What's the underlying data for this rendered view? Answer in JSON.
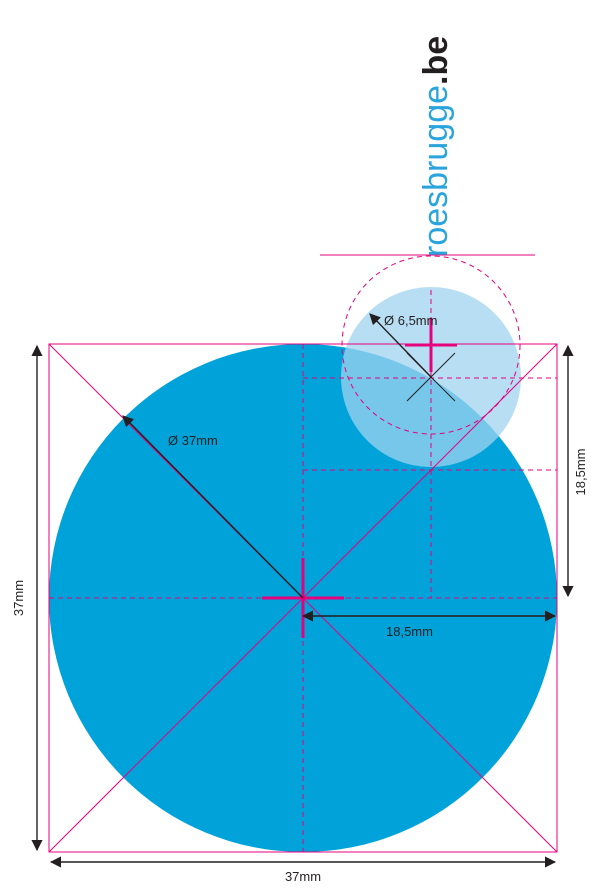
{
  "brand": {
    "name_part": "roesbrugge",
    "tld_part": ".be",
    "name_color": "#2aa4dc",
    "tld_color": "#231f20"
  },
  "dimensions": {
    "width_label": "37mm",
    "height_label": "37mm",
    "diameter_large_label": "Ø 37mm",
    "radius_horizontal_label": "18,5mm",
    "radius_vertical_label": "18,5mm",
    "diameter_small_label": "Ø 6,5mm"
  },
  "colors": {
    "large_circle_fill": "#00a3d9",
    "small_circle_fill": "#9fd3ef",
    "guide_lines": "#e6007e",
    "dimension_lines": "#231f20"
  },
  "shapes": {
    "large_circle_diameter_mm": 37,
    "small_circle_diameter_mm": 6.5
  }
}
